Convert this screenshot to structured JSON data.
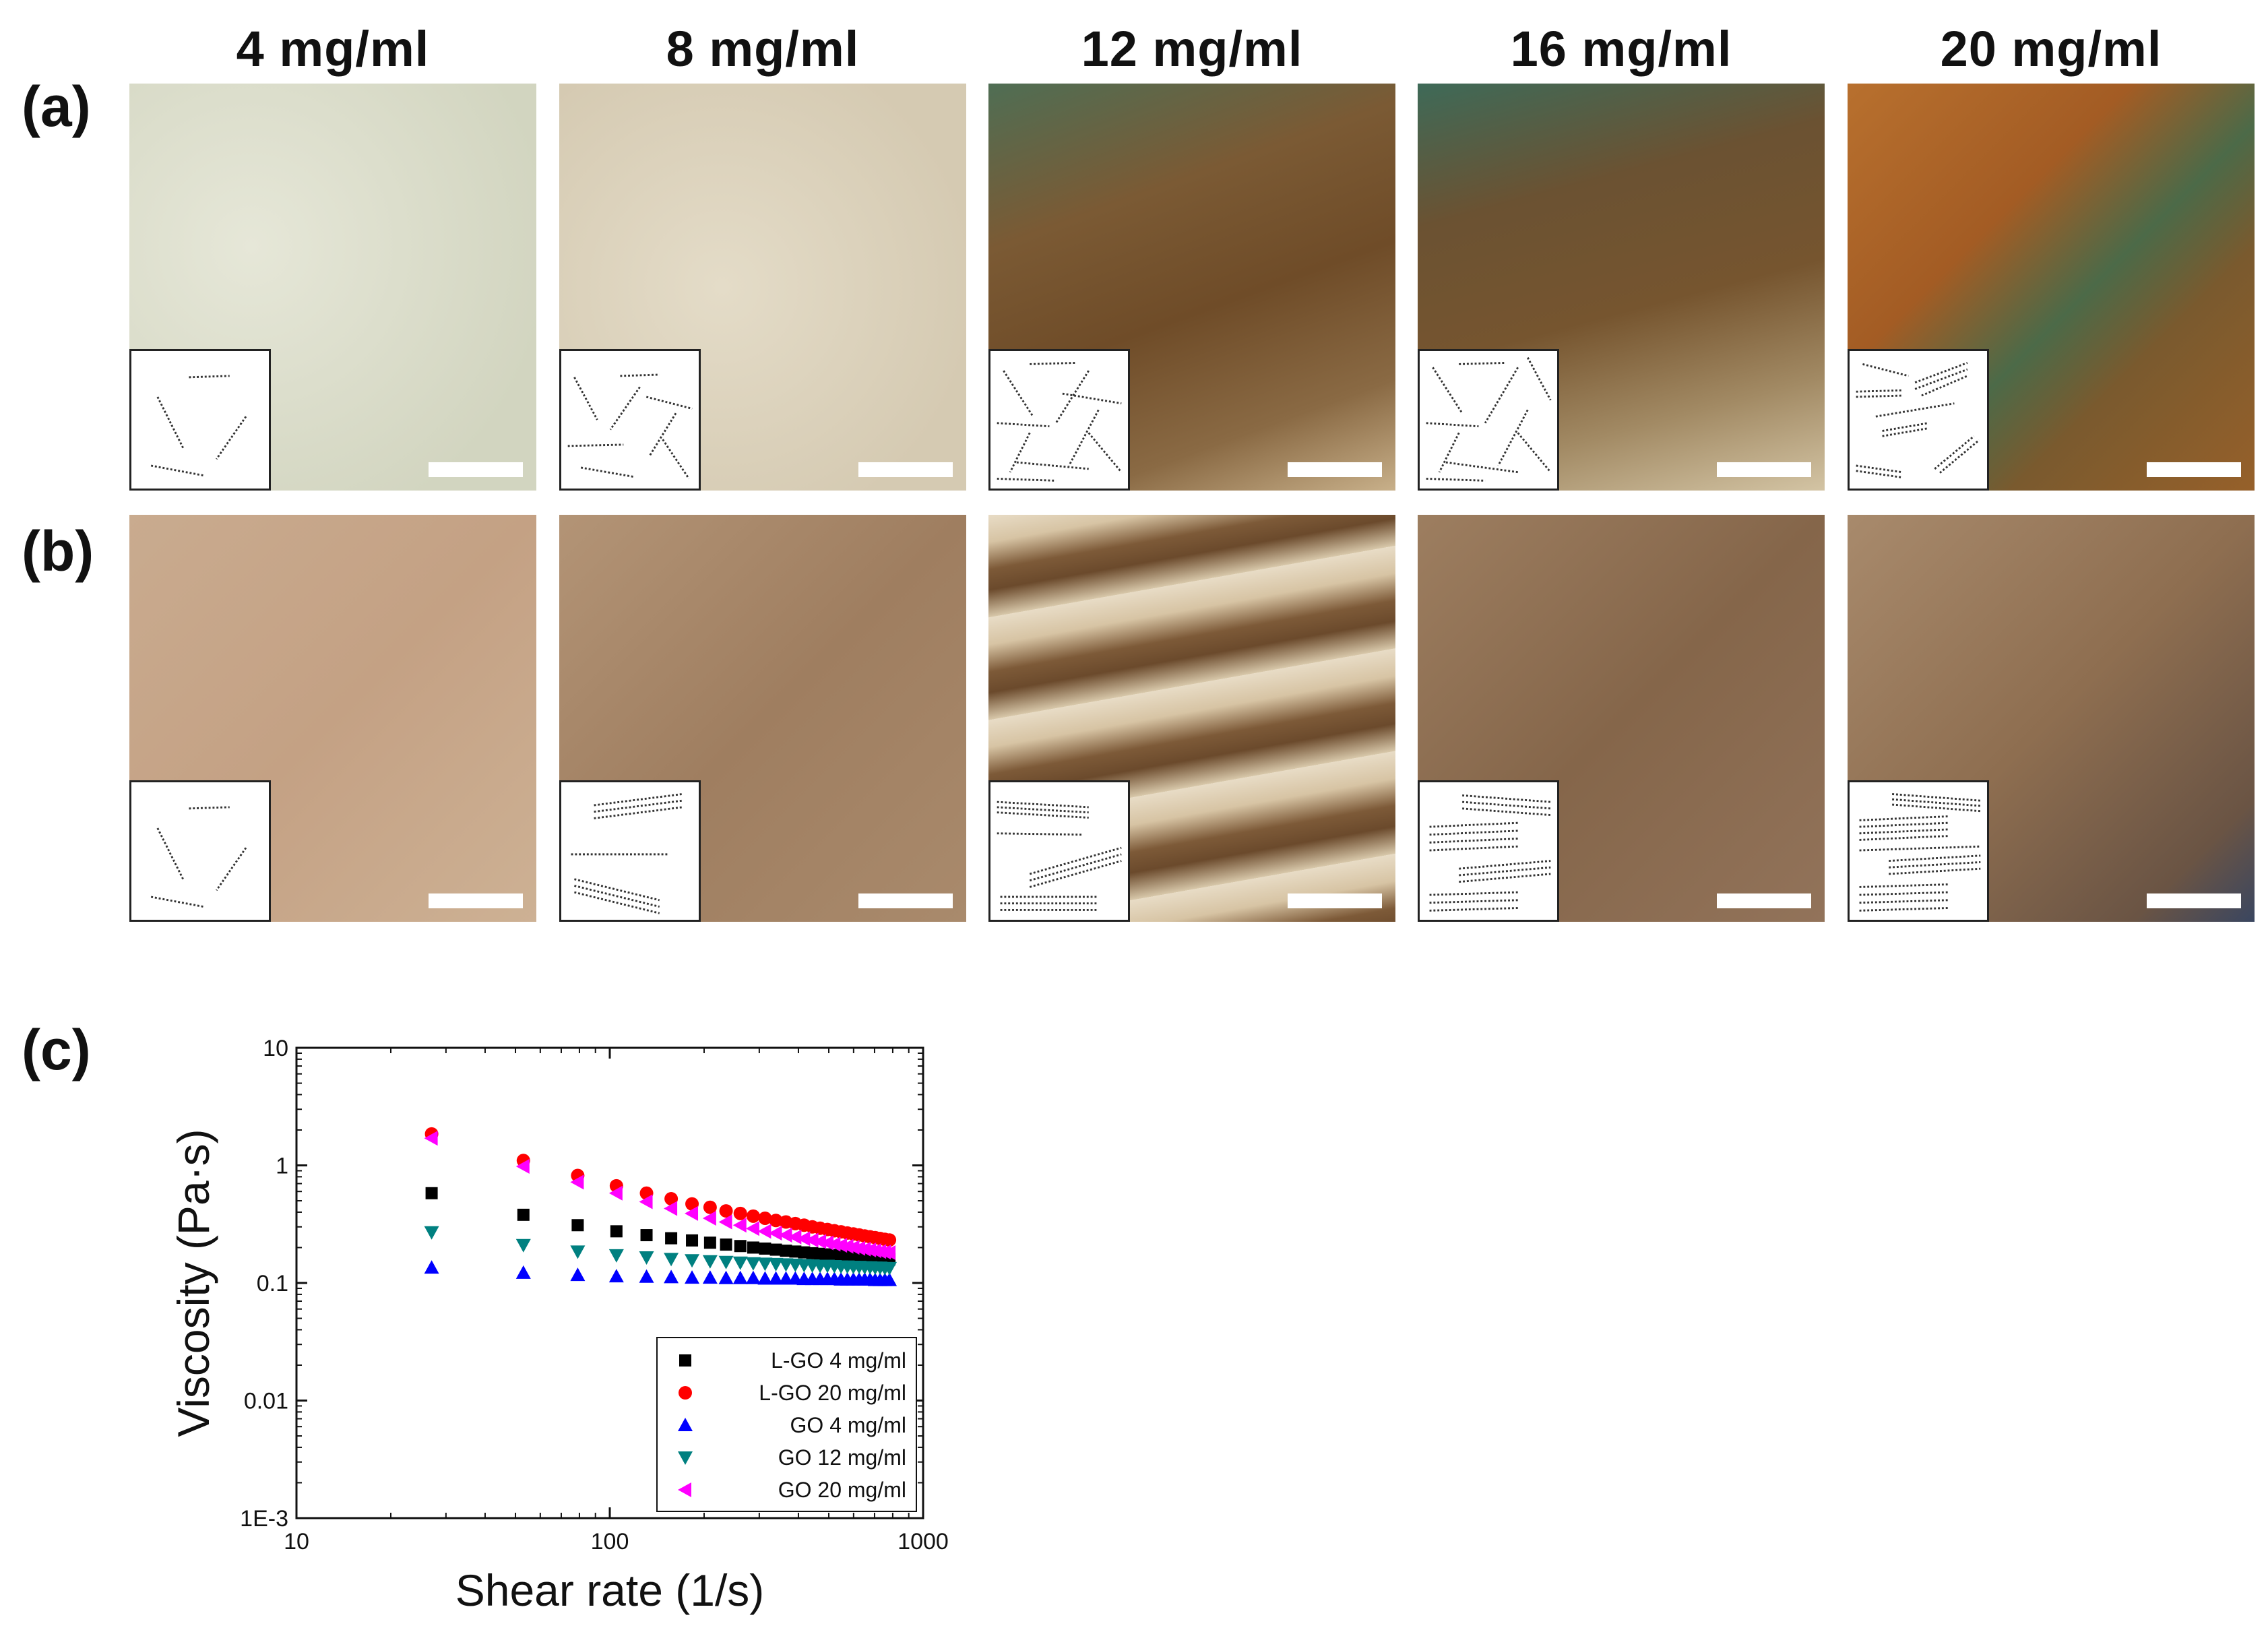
{
  "figure": {
    "panel_labels": [
      "(a)",
      "(b)",
      "(c)"
    ],
    "concentrations": [
      "4 mg/ml",
      "8 mg/ml",
      "12 mg/ml",
      "16 mg/ml",
      "20 mg/ml"
    ],
    "row_a_colors": [
      "#d9dcc9",
      "#dcd3bd",
      "#7e5a30",
      "#7a5632",
      "#a8642a"
    ],
    "row_b_colors": [
      "#c8a88c",
      "#a98a6c",
      "#b08b6a",
      "#8c6d52",
      "#9a7a5c"
    ]
  },
  "chart_data": {
    "type": "scatter",
    "xlabel": "Shear rate (1/s)",
    "ylabel": "Viscosity (Pa·s)",
    "xscale": "log",
    "yscale": "log",
    "xlim": [
      10,
      1000
    ],
    "ylim": [
      0.001,
      10
    ],
    "x_tick_labels": [
      "10",
      "100",
      "1000"
    ],
    "y_tick_labels": [
      "1E-3",
      "0.01",
      "0.1",
      "1",
      "10"
    ],
    "legend_position": "bottom-right",
    "x": [
      27,
      53,
      79,
      105,
      131,
      157,
      183,
      209,
      235,
      261,
      287,
      313,
      339,
      365,
      391,
      417,
      443,
      469,
      495,
      521,
      547,
      573,
      599,
      625,
      651,
      677,
      703,
      729,
      755,
      781
    ],
    "series": [
      {
        "name": "L-GO   4 mg/ml",
        "color": "#000000",
        "marker": "square",
        "values": [
          0.58,
          0.38,
          0.31,
          0.275,
          0.255,
          0.24,
          0.23,
          0.22,
          0.212,
          0.206,
          0.2,
          0.196,
          0.192,
          0.188,
          0.185,
          0.182,
          0.179,
          0.177,
          0.175,
          0.173,
          0.171,
          0.169,
          0.167,
          0.166,
          0.165,
          0.163,
          0.162,
          0.161,
          0.16,
          0.159
        ]
      },
      {
        "name": "L-GO 20 mg/ml",
        "color": "#ff0000",
        "marker": "circle",
        "values": [
          1.85,
          1.1,
          0.82,
          0.67,
          0.58,
          0.52,
          0.47,
          0.44,
          0.41,
          0.39,
          0.37,
          0.355,
          0.34,
          0.33,
          0.32,
          0.31,
          0.3,
          0.292,
          0.285,
          0.278,
          0.272,
          0.266,
          0.261,
          0.256,
          0.251,
          0.247,
          0.243,
          0.239,
          0.235,
          0.232
        ]
      },
      {
        "name": "GO   4 mg/ml",
        "color": "#0000ff",
        "marker": "triangle-up",
        "values": [
          0.135,
          0.122,
          0.117,
          0.114,
          0.113,
          0.112,
          0.111,
          0.111,
          0.11,
          0.11,
          0.11,
          0.109,
          0.109,
          0.109,
          0.109,
          0.108,
          0.108,
          0.108,
          0.108,
          0.108,
          0.107,
          0.107,
          0.107,
          0.107,
          0.107,
          0.107,
          0.106,
          0.106,
          0.106,
          0.106
        ]
      },
      {
        "name": "GO 12 mg/ml",
        "color": "#008080",
        "marker": "triangle-down",
        "values": [
          0.27,
          0.21,
          0.185,
          0.172,
          0.165,
          0.16,
          0.156,
          0.153,
          0.151,
          0.149,
          0.147,
          0.146,
          0.145,
          0.144,
          0.143,
          0.142,
          0.141,
          0.14,
          0.14,
          0.139,
          0.138,
          0.138,
          0.137,
          0.137,
          0.136,
          0.136,
          0.135,
          0.135,
          0.134,
          0.134
        ]
      },
      {
        "name": "GO 20 mg/ml",
        "color": "#ff00ff",
        "marker": "triangle-left",
        "values": [
          1.7,
          0.98,
          0.72,
          0.58,
          0.49,
          0.43,
          0.39,
          0.355,
          0.33,
          0.31,
          0.29,
          0.275,
          0.265,
          0.255,
          0.246,
          0.238,
          0.231,
          0.225,
          0.219,
          0.214,
          0.209,
          0.205,
          0.201,
          0.197,
          0.194,
          0.191,
          0.188,
          0.185,
          0.183,
          0.181
        ]
      }
    ]
  }
}
